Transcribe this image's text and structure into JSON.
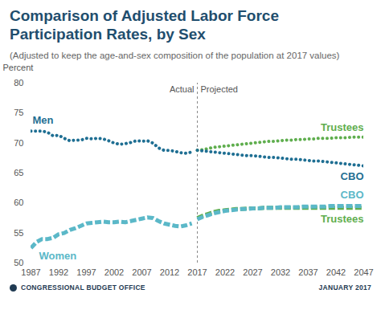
{
  "chart_data": {
    "type": "line",
    "title": "Comparison of Adjusted Labor Force Participation Rates, by Sex",
    "subtitle": "(Adjusted to keep the age-and-sex composition of the population at 2017 values)",
    "y_label": "Percent",
    "source": "CONGRESSIONAL BUDGET OFFICE",
    "date": "JANUARY 2017",
    "projection_start": 2017,
    "divider_labels": [
      "Actual",
      "Projected"
    ],
    "x": [
      1987,
      1988,
      1989,
      1990,
      1991,
      1992,
      1993,
      1994,
      1995,
      1996,
      1997,
      1998,
      1999,
      2000,
      2001,
      2002,
      2003,
      2004,
      2005,
      2006,
      2007,
      2008,
      2009,
      2010,
      2011,
      2012,
      2013,
      2014,
      2015,
      2016,
      2017,
      2018,
      2019,
      2020,
      2021,
      2022,
      2023,
      2024,
      2025,
      2026,
      2027,
      2028,
      2029,
      2030,
      2031,
      2032,
      2033,
      2034,
      2035,
      2036,
      2037,
      2038,
      2039,
      2040,
      2041,
      2042,
      2043,
      2044,
      2045,
      2046,
      2047
    ],
    "xlim": [
      1987,
      2047
    ],
    "xticks": [
      1987,
      1992,
      1997,
      2002,
      2007,
      2012,
      2017,
      2022,
      2027,
      2032,
      2037,
      2042,
      2047
    ],
    "ylim": [
      50,
      80
    ],
    "yticks": [
      50,
      55,
      60,
      65,
      70,
      75,
      80
    ],
    "grid": false,
    "series": [
      {
        "name": "Men",
        "color": "#1f6f93",
        "line_style": "dotted",
        "values": [
          72,
          72,
          72,
          71.8,
          71.2,
          71.3,
          70.8,
          70.4,
          70.5,
          70.5,
          70.8,
          70.7,
          70.8,
          70.7,
          70.4,
          70.0,
          69.8,
          69.9,
          70.1,
          70.4,
          70.3,
          70.4,
          70.0,
          69.2,
          68.8,
          68.8,
          68.6,
          68.4,
          68.3,
          68.5,
          null,
          null,
          null,
          null,
          null,
          null,
          null,
          null,
          null,
          null,
          null,
          null,
          null,
          null,
          null,
          null,
          null,
          null,
          null,
          null,
          null,
          null,
          null,
          null,
          null,
          null,
          null,
          null,
          null,
          null,
          null
        ]
      },
      {
        "name": "Women",
        "color": "#5bb8c8",
        "line_style": "dashed",
        "values": [
          52.5,
          53.5,
          54,
          54,
          54.2,
          54.8,
          55,
          55.5,
          55.8,
          56.2,
          56.6,
          56.7,
          56.8,
          56.9,
          56.8,
          56.8,
          56.9,
          56.8,
          57.0,
          57.2,
          57.4,
          57.6,
          57.5,
          57.0,
          56.6,
          56.4,
          56.2,
          56.1,
          56.3,
          56.6,
          null,
          null,
          null,
          null,
          null,
          null,
          null,
          null,
          null,
          null,
          null,
          null,
          null,
          null,
          null,
          null,
          null,
          null,
          null,
          null,
          null,
          null,
          null,
          null,
          null,
          null,
          null,
          null,
          null,
          null,
          null
        ]
      },
      {
        "name": "Trustees",
        "color": "#5fae4e",
        "line_style": "dotted",
        "values": [
          null,
          null,
          null,
          null,
          null,
          null,
          null,
          null,
          null,
          null,
          null,
          null,
          null,
          null,
          null,
          null,
          null,
          null,
          null,
          null,
          null,
          null,
          null,
          null,
          null,
          null,
          null,
          null,
          null,
          null,
          68.8,
          68.9,
          69.1,
          69.3,
          69.4,
          69.5,
          69.6,
          69.7,
          69.8,
          69.9,
          70.0,
          70.1,
          70.2,
          70.3,
          70.3,
          70.4,
          70.5,
          70.5,
          70.6,
          70.6,
          70.7,
          70.7,
          70.8,
          70.8,
          70.8,
          70.9,
          70.9,
          70.9,
          71.0,
          71.0,
          71.0
        ]
      },
      {
        "name": "CBO",
        "color": "#1f6f93",
        "line_style": "dotted",
        "values": [
          null,
          null,
          null,
          null,
          null,
          null,
          null,
          null,
          null,
          null,
          null,
          null,
          null,
          null,
          null,
          null,
          null,
          null,
          null,
          null,
          null,
          null,
          null,
          null,
          null,
          null,
          null,
          null,
          null,
          null,
          68.8,
          68.7,
          68.6,
          68.5,
          68.4,
          68.3,
          68.2,
          68.1,
          68.0,
          67.9,
          67.9,
          67.8,
          67.7,
          67.6,
          67.6,
          67.5,
          67.4,
          67.3,
          67.3,
          67.2,
          67.1,
          67.0,
          67.0,
          66.9,
          66.8,
          66.7,
          66.6,
          66.5,
          66.4,
          66.3,
          66.2
        ]
      },
      {
        "name": "Trustees",
        "color": "#5fae4e",
        "line_style": "dashed",
        "values": [
          null,
          null,
          null,
          null,
          null,
          null,
          null,
          null,
          null,
          null,
          null,
          null,
          null,
          null,
          null,
          null,
          null,
          null,
          null,
          null,
          null,
          null,
          null,
          null,
          null,
          null,
          null,
          null,
          null,
          null,
          57.5,
          57.9,
          58.2,
          58.5,
          58.7,
          58.8,
          58.9,
          59.0,
          59.0,
          59.1,
          59.1,
          59.1,
          59.2,
          59.2,
          59.2,
          59.2,
          59.2,
          59.2,
          59.2,
          59.2,
          59.2,
          59.2,
          59.2,
          59.2,
          59.2,
          59.2,
          59.2,
          59.2,
          59.2,
          59.2,
          59.2
        ]
      },
      {
        "name": "CBO",
        "color": "#5bb8c8",
        "line_style": "dashed",
        "values": [
          null,
          null,
          null,
          null,
          null,
          null,
          null,
          null,
          null,
          null,
          null,
          null,
          null,
          null,
          null,
          null,
          null,
          null,
          null,
          null,
          null,
          null,
          null,
          null,
          null,
          null,
          null,
          null,
          null,
          null,
          57.3,
          57.7,
          58.0,
          58.3,
          58.5,
          58.7,
          58.8,
          58.9,
          59.0,
          59.0,
          59.1,
          59.1,
          59.2,
          59.2,
          59.2,
          59.3,
          59.3,
          59.3,
          59.3,
          59.4,
          59.4,
          59.4,
          59.4,
          59.4,
          59.5,
          59.5,
          59.5,
          59.5,
          59.5,
          59.5,
          59.5
        ]
      }
    ]
  }
}
